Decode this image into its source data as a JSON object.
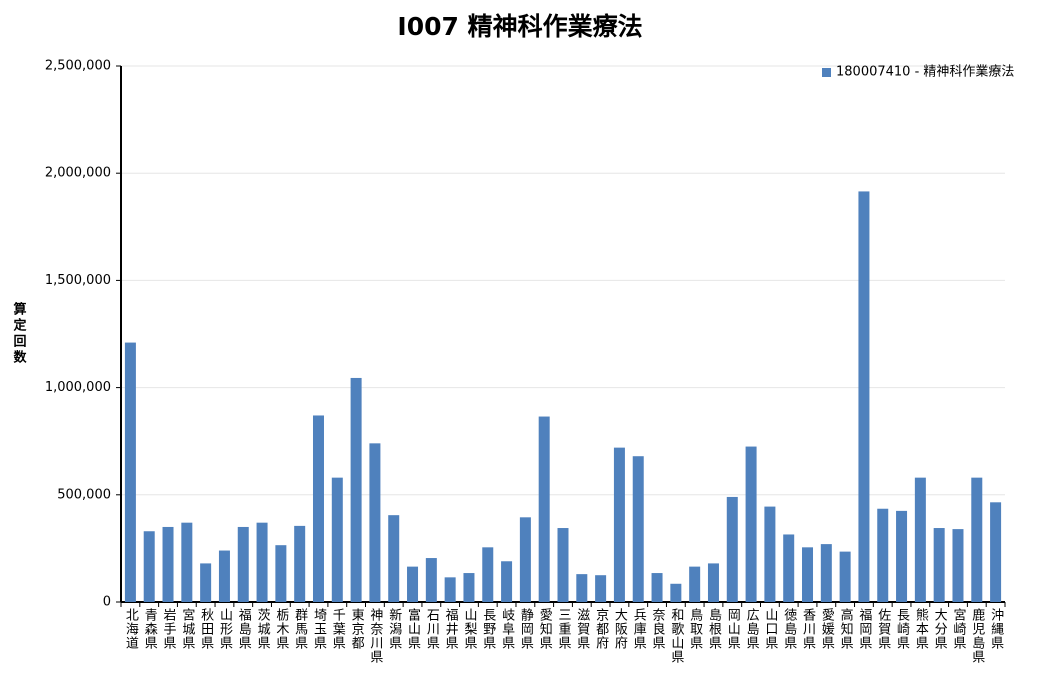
{
  "chart_data": {
    "type": "bar",
    "title": "I007 精神科作業療法",
    "y_label": "算定回数",
    "categories": [
      "北海道",
      "青森県",
      "岩手県",
      "宮城県",
      "秋田県",
      "山形県",
      "福島県",
      "茨城県",
      "栃木県",
      "群馬県",
      "埼玉県",
      "千葉県",
      "東京都",
      "神奈川県",
      "新潟県",
      "富山県",
      "石川県",
      "福井県",
      "山梨県",
      "長野県",
      "岐阜県",
      "静岡県",
      "愛知県",
      "三重県",
      "滋賀県",
      "京都府",
      "大阪府",
      "兵庫県",
      "奈良県",
      "和歌山県",
      "鳥取県",
      "島根県",
      "岡山県",
      "広島県",
      "山口県",
      "徳島県",
      "香川県",
      "愛媛県",
      "高知県",
      "福岡県",
      "佐賀県",
      "長崎県",
      "熊本県",
      "大分県",
      "宮崎県",
      "鹿児島県",
      "沖縄県"
    ],
    "series": [
      {
        "name": "180007410 - 精神科作業療法",
        "color": "#4f81bd",
        "values": [
          1210000,
          330000,
          350000,
          370000,
          180000,
          240000,
          350000,
          370000,
          265000,
          355000,
          870000,
          580000,
          1045000,
          740000,
          405000,
          165000,
          205000,
          115000,
          135000,
          255000,
          190000,
          395000,
          865000,
          345000,
          130000,
          125000,
          720000,
          680000,
          135000,
          85000,
          165000,
          180000,
          490000,
          725000,
          445000,
          315000,
          255000,
          270000,
          235000,
          1915000,
          435000,
          425000,
          580000,
          345000,
          340000,
          580000,
          465000
        ]
      }
    ],
    "ylim": [
      0,
      2500000
    ],
    "yticks": [
      0,
      {
        "value": 500000,
        "label": "500,000"
      },
      {
        "value": 1000000,
        "label": "1,000,000"
      },
      {
        "value": 1500000,
        "label": "1,500,000"
      },
      {
        "value": 2000000,
        "label": "2,000,000"
      },
      {
        "value": 2500000,
        "label": "2,500,000"
      }
    ],
    "grid": true,
    "legend": "top-right"
  }
}
